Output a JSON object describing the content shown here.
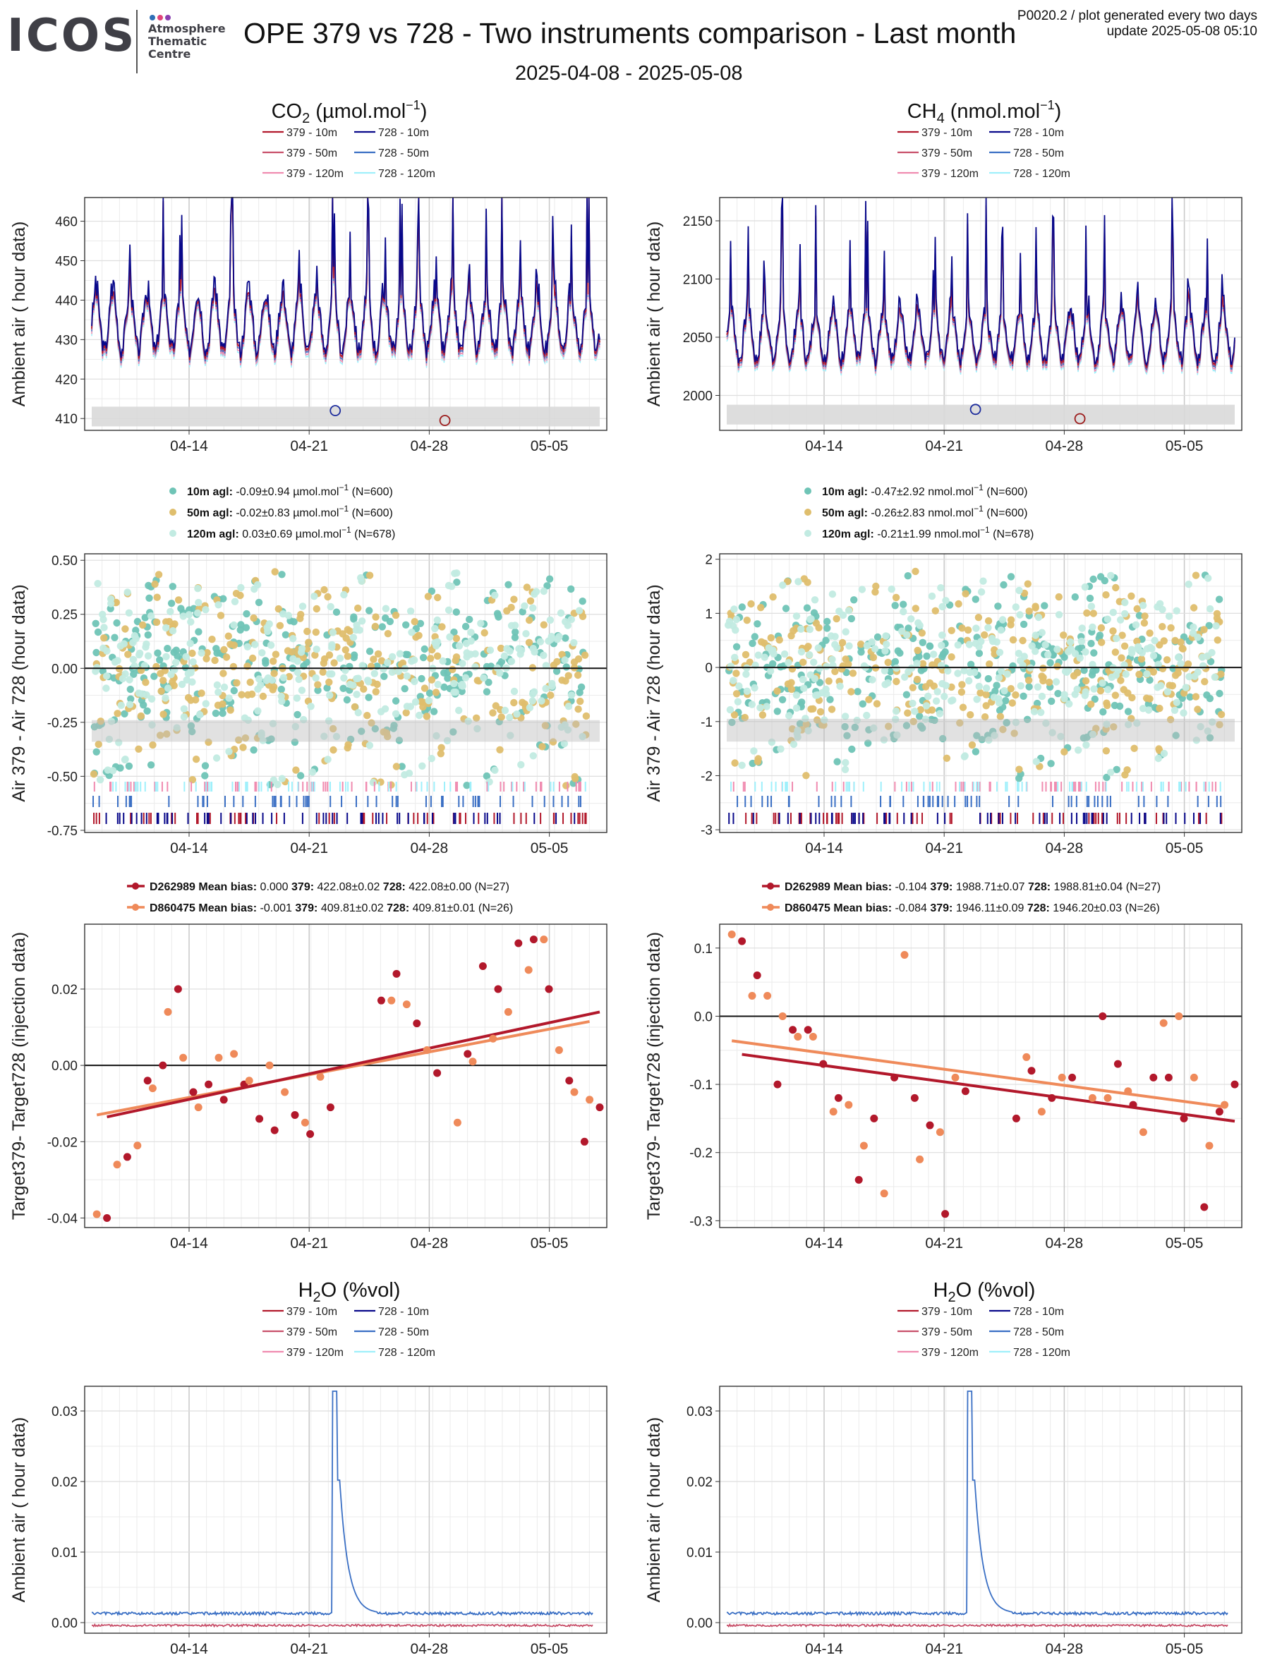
{
  "header": {
    "logo_text": "ICOS",
    "logo_sub": [
      "Atmosphere",
      "Thematic",
      "Centre"
    ],
    "logo_colors": [
      "#2f6fb6",
      "#e0457b",
      "#8a3fb0"
    ],
    "title": "OPE 379 vs 728 - Two instruments comparison - Last month",
    "date_range": "2025-04-08 - 2025-05-08",
    "plot_id": "P0020.2 / plot generated every two days",
    "update": "update  2025-05-08 05:10"
  },
  "legend_lines": {
    "items": [
      {
        "label": "379 - 10m",
        "color": "#b2182b"
      },
      {
        "label": "728 - 10m",
        "color": "#08088a"
      },
      {
        "label": "379 - 50m",
        "color": "#c8506a"
      },
      {
        "label": "728 - 50m",
        "color": "#3a6fc4"
      },
      {
        "label": "379 - 120m",
        "color": "#f08bb0"
      },
      {
        "label": "728 - 120m",
        "color": "#9ff0fb"
      }
    ]
  },
  "x_ticks": [
    "04-14",
    "04-21",
    "04-28",
    "05-05"
  ],
  "co2": {
    "title_main": "CO",
    "title_sub": "2",
    "title_unit": " (µmol.mol",
    "title_sup": "−1",
    "title_close": ")",
    "ambient": {
      "ylabel": "Ambient air ( hour data)",
      "yticks": [
        "410",
        "420",
        "430",
        "440",
        "450",
        "460"
      ],
      "ylim": [
        407,
        466
      ],
      "band": [
        408,
        413
      ],
      "circles": [
        {
          "x": 0.48,
          "y": 412,
          "color": "#1c2b9c"
        },
        {
          "x": 0.69,
          "y": 409.5,
          "color": "#9c1c1c"
        }
      ],
      "base": 432,
      "amp": 9,
      "spike": 28,
      "seed": 3
    },
    "diff_legend": [
      {
        "label": "10m agl:",
        "text": " -0.09±0.94 µmol.mol",
        "sup": "−1",
        "n": "(N=600)",
        "color": "#6fc4b6"
      },
      {
        "label": "50m agl:",
        "text": " -0.02±0.83 µmol.mol",
        "sup": "−1",
        "n": "(N=600)",
        "color": "#dfbe6d"
      },
      {
        "label": "120m agl:",
        "text": " 0.03±0.69 µmol.mol",
        "sup": "−1",
        "n": "(N=678)",
        "color": "#c2ebe2"
      }
    ],
    "diff": {
      "ylabel": "Air 379 - Air 728 (hour data)",
      "yticks": [
        "-0.75",
        "-0.50",
        "-0.25",
        "0.00",
        "0.25",
        "0.50"
      ],
      "ytick_vals": [
        -0.75,
        -0.5,
        -0.25,
        0,
        0.25,
        0.5
      ],
      "ylim": [
        -0.76,
        0.53
      ],
      "band": [
        -0.34,
        -0.24
      ],
      "spread": 0.5,
      "seed": 11
    },
    "target_legend": [
      {
        "tank": "D262989",
        "bias_label": "Mean bias:",
        "bias": " 0.000",
        "a_label": "379:",
        "a": " 422.08±0.02",
        "b_label": "728:",
        "b": " 422.08±0.00 (N=27)",
        "color": "#b2182b"
      },
      {
        "tank": "D860475",
        "bias_label": "Mean bias:",
        "bias": " -0.001",
        "a_label": "379:",
        "a": " 409.81±0.02",
        "b_label": "728:",
        "b": " 409.81±0.01 (N=26)",
        "color": "#ef8a5a"
      }
    ],
    "target": {
      "ylabel": "Target379- Target728 (injection data)",
      "yticks": [
        "-0.04",
        "-0.02",
        "0.00",
        "0.02"
      ],
      "ytick_vals": [
        -0.04,
        -0.02,
        0,
        0.02
      ],
      "ylim": [
        -0.0425,
        0.037
      ],
      "fit1": {
        "x": [
          0.03,
          1.0
        ],
        "y": [
          -0.0135,
          0.014
        ]
      },
      "fit2": {
        "x": [
          0.01,
          0.98
        ],
        "y": [
          -0.013,
          0.0115
        ]
      },
      "points": [
        [
          0.01,
          -0.039,
          2
        ],
        [
          0.03,
          -0.04,
          1
        ],
        [
          0.05,
          -0.026,
          2
        ],
        [
          0.07,
          -0.024,
          1
        ],
        [
          0.09,
          -0.021,
          2
        ],
        [
          0.11,
          -0.004,
          1
        ],
        [
          0.12,
          -0.006,
          2
        ],
        [
          0.14,
          0.0,
          1
        ],
        [
          0.15,
          0.014,
          2
        ],
        [
          0.17,
          0.02,
          1
        ],
        [
          0.18,
          0.002,
          2
        ],
        [
          0.2,
          -0.007,
          1
        ],
        [
          0.21,
          -0.011,
          2
        ],
        [
          0.23,
          -0.005,
          1
        ],
        [
          0.25,
          0.002,
          2
        ],
        [
          0.26,
          -0.009,
          1
        ],
        [
          0.28,
          0.003,
          2
        ],
        [
          0.3,
          -0.005,
          1
        ],
        [
          0.31,
          -0.004,
          2
        ],
        [
          0.33,
          -0.014,
          1
        ],
        [
          0.35,
          0.0,
          2
        ],
        [
          0.36,
          -0.017,
          1
        ],
        [
          0.38,
          -0.007,
          2
        ],
        [
          0.4,
          -0.013,
          1
        ],
        [
          0.42,
          -0.015,
          2
        ],
        [
          0.43,
          -0.018,
          1
        ],
        [
          0.45,
          -0.003,
          2
        ],
        [
          0.47,
          -0.011,
          1
        ],
        [
          0.57,
          0.017,
          1
        ],
        [
          0.59,
          0.017,
          2
        ],
        [
          0.6,
          0.024,
          1
        ],
        [
          0.62,
          0.016,
          2
        ],
        [
          0.64,
          0.011,
          1
        ],
        [
          0.66,
          0.004,
          2
        ],
        [
          0.68,
          -0.002,
          1
        ],
        [
          0.72,
          -0.015,
          2
        ],
        [
          0.74,
          0.003,
          1
        ],
        [
          0.75,
          0.001,
          2
        ],
        [
          0.77,
          0.026,
          1
        ],
        [
          0.79,
          0.007,
          2
        ],
        [
          0.8,
          0.02,
          1
        ],
        [
          0.82,
          0.014,
          2
        ],
        [
          0.84,
          0.032,
          1
        ],
        [
          0.86,
          0.025,
          2
        ],
        [
          0.87,
          0.033,
          1
        ],
        [
          0.89,
          0.033,
          2
        ],
        [
          0.9,
          0.02,
          1
        ],
        [
          0.92,
          0.004,
          2
        ],
        [
          0.94,
          -0.004,
          1
        ],
        [
          0.95,
          -0.007,
          2
        ],
        [
          0.97,
          -0.02,
          1
        ],
        [
          0.98,
          -0.009,
          2
        ],
        [
          1.0,
          -0.011,
          1
        ]
      ]
    }
  },
  "ch4": {
    "title_main": "CH",
    "title_sub": "4",
    "title_unit": " (nmol.mol",
    "title_sup": "−1",
    "title_close": ")",
    "ambient": {
      "ylabel": "Ambient air ( hour data)",
      "yticks": [
        "2000",
        "2050",
        "2100",
        "2150"
      ],
      "ylim": [
        1970,
        2170
      ],
      "band": [
        1975,
        1992
      ],
      "circles": [
        {
          "x": 0.49,
          "y": 1988,
          "color": "#1c2b9c"
        },
        {
          "x": 0.69,
          "y": 1980,
          "color": "#9c1c1c"
        }
      ],
      "base": 2045,
      "amp": 28,
      "spike": 95,
      "seed": 7
    },
    "diff_legend": [
      {
        "label": "10m agl:",
        "text": " -0.47±2.92 nmol.mol",
        "sup": "−1",
        "n": "(N=600)",
        "color": "#6fc4b6"
      },
      {
        "label": "50m agl:",
        "text": " -0.26±2.83 nmol.mol",
        "sup": "−1",
        "n": "(N=600)",
        "color": "#dfbe6d"
      },
      {
        "label": "120m agl:",
        "text": " -0.21±1.99 nmol.mol",
        "sup": "−1",
        "n": "(N=678)",
        "color": "#c2ebe2"
      }
    ],
    "diff": {
      "ylabel": "Air 379 - Air 728 (hour data)",
      "yticks": [
        "-3",
        "-2",
        "-1",
        "0",
        "1",
        "2"
      ],
      "ytick_vals": [
        -3,
        -2,
        -1,
        0,
        1,
        2
      ],
      "ylim": [
        -3.05,
        2.1
      ],
      "band": [
        -1.37,
        -0.95
      ],
      "spread": 1.9,
      "seed": 23
    },
    "target_legend": [
      {
        "tank": "D262989",
        "bias_label": "Mean bias:",
        "bias": " -0.104",
        "a_label": "379:",
        "a": " 1988.71±0.07",
        "b_label": "728:",
        "b": " 1988.81±0.04 (N=27)",
        "color": "#b2182b"
      },
      {
        "tank": "D860475",
        "bias_label": "Mean bias:",
        "bias": " -0.084",
        "a_label": "379:",
        "a": " 1946.11±0.09",
        "b_label": "728:",
        "b": " 1946.20±0.03 (N=26)",
        "color": "#ef8a5a"
      }
    ],
    "target": {
      "ylabel": "Target379- Target728 (injection data)",
      "yticks": [
        "-0.3",
        "-0.2",
        "-0.1",
        "0.0",
        "0.1"
      ],
      "ytick_vals": [
        -0.3,
        -0.2,
        -0.1,
        0,
        0.1
      ],
      "ylim": [
        -0.31,
        0.135
      ],
      "fit1": {
        "x": [
          0.03,
          1.0
        ],
        "y": [
          -0.056,
          -0.154
        ]
      },
      "fit2": {
        "x": [
          0.01,
          0.98
        ],
        "y": [
          -0.036,
          -0.133
        ]
      },
      "points": [
        [
          0.01,
          0.12,
          2
        ],
        [
          0.03,
          0.11,
          1
        ],
        [
          0.05,
          0.03,
          2
        ],
        [
          0.06,
          0.06,
          1
        ],
        [
          0.08,
          0.03,
          2
        ],
        [
          0.1,
          -0.1,
          1
        ],
        [
          0.11,
          0.0,
          2
        ],
        [
          0.13,
          -0.02,
          1
        ],
        [
          0.14,
          -0.03,
          2
        ],
        [
          0.16,
          -0.02,
          1
        ],
        [
          0.17,
          -0.03,
          2
        ],
        [
          0.19,
          -0.07,
          1
        ],
        [
          0.21,
          -0.14,
          2
        ],
        [
          0.22,
          -0.12,
          1
        ],
        [
          0.24,
          -0.13,
          2
        ],
        [
          0.26,
          -0.24,
          1
        ],
        [
          0.27,
          -0.19,
          2
        ],
        [
          0.29,
          -0.15,
          1
        ],
        [
          0.31,
          -0.26,
          2
        ],
        [
          0.33,
          -0.09,
          1
        ],
        [
          0.35,
          0.09,
          2
        ],
        [
          0.37,
          -0.12,
          1
        ],
        [
          0.38,
          -0.21,
          2
        ],
        [
          0.4,
          -0.16,
          1
        ],
        [
          0.42,
          -0.17,
          2
        ],
        [
          0.43,
          -0.29,
          1
        ],
        [
          0.45,
          -0.09,
          2
        ],
        [
          0.47,
          -0.11,
          1
        ],
        [
          0.57,
          -0.15,
          1
        ],
        [
          0.59,
          -0.06,
          2
        ],
        [
          0.6,
          -0.08,
          1
        ],
        [
          0.62,
          -0.14,
          2
        ],
        [
          0.64,
          -0.12,
          1
        ],
        [
          0.66,
          -0.09,
          2
        ],
        [
          0.68,
          -0.09,
          1
        ],
        [
          0.72,
          -0.12,
          2
        ],
        [
          0.74,
          0.0,
          1
        ],
        [
          0.75,
          -0.12,
          2
        ],
        [
          0.77,
          -0.07,
          1
        ],
        [
          0.79,
          -0.11,
          2
        ],
        [
          0.8,
          -0.13,
          1
        ],
        [
          0.82,
          -0.17,
          2
        ],
        [
          0.84,
          -0.09,
          1
        ],
        [
          0.86,
          -0.01,
          2
        ],
        [
          0.87,
          -0.09,
          1
        ],
        [
          0.89,
          0.0,
          2
        ],
        [
          0.9,
          -0.15,
          1
        ],
        [
          0.92,
          -0.09,
          2
        ],
        [
          0.94,
          -0.28,
          1
        ],
        [
          0.95,
          -0.19,
          2
        ],
        [
          0.97,
          -0.14,
          1
        ],
        [
          0.98,
          -0.13,
          2
        ],
        [
          1.0,
          -0.1,
          1
        ]
      ]
    }
  },
  "h2o": {
    "title_main": "H",
    "title_sub": "2",
    "title_rest": "O (%vol)",
    "ylabel": "Ambient air ( hour data)",
    "yticks": [
      "0.00",
      "0.01",
      "0.02",
      "0.03"
    ],
    "ytick_vals": [
      0,
      0.01,
      0.02,
      0.03
    ],
    "ylim": [
      -0.0015,
      0.0335
    ],
    "blue_level": 0.0013,
    "red_level": -0.0004,
    "spike_x": 0.48,
    "spike_peak": 0.0328,
    "spike_second": 0.0202
  },
  "chart_data": [
    {
      "type": "line",
      "title": "CO2 (µmol.mol−1)",
      "ylabel": "Ambient air ( hour data)",
      "x": [
        "04-14",
        "04-21",
        "04-28",
        "05-05"
      ],
      "ylim": [
        407,
        466
      ],
      "series": [
        {
          "name": "379 - 10m"
        },
        {
          "name": "728 - 10m"
        },
        {
          "name": "379 - 50m"
        },
        {
          "name": "728 - 50m"
        },
        {
          "name": "379 - 120m"
        },
        {
          "name": "728 - 120m"
        }
      ]
    },
    {
      "type": "line",
      "title": "CH4 (nmol.mol−1)",
      "ylabel": "Ambient air ( hour data)",
      "ylim": [
        1970,
        2170
      ]
    },
    {
      "type": "scatter",
      "ylabel": "Air 379 - Air 728 (hour data)",
      "ylim": [
        -0.76,
        0.53
      ],
      "series": [
        {
          "name": "10m agl",
          "mean": -0.09,
          "sd": 0.94,
          "n": 600
        },
        {
          "name": "50m agl",
          "mean": -0.02,
          "sd": 0.83,
          "n": 600
        },
        {
          "name": "120m agl",
          "mean": 0.03,
          "sd": 0.69,
          "n": 678
        }
      ]
    },
    {
      "type": "scatter",
      "ylabel": "Air 379 - Air 728 (hour data)",
      "ylim": [
        -3.05,
        2.1
      ],
      "series": [
        {
          "name": "10m agl",
          "mean": -0.47,
          "sd": 2.92,
          "n": 600
        },
        {
          "name": "50m agl",
          "mean": -0.26,
          "sd": 2.83,
          "n": 600
        },
        {
          "name": "120m agl",
          "mean": -0.21,
          "sd": 1.99,
          "n": 678
        }
      ]
    },
    {
      "type": "scatter",
      "ylabel": "Target379- Target728 (injection data)",
      "series": [
        {
          "name": "D262989",
          "mean_bias": 0.0,
          "n": 27
        },
        {
          "name": "D860475",
          "mean_bias": -0.001,
          "n": 26
        }
      ]
    },
    {
      "type": "scatter",
      "ylabel": "Target379- Target728 (injection data)",
      "series": [
        {
          "name": "D262989",
          "mean_bias": -0.104,
          "n": 27
        },
        {
          "name": "D860475",
          "mean_bias": -0.084,
          "n": 26
        }
      ]
    },
    {
      "type": "line",
      "title": "H2O (%vol)",
      "ylabel": "Ambient air ( hour data)",
      "ylim": [
        -0.0015,
        0.0335
      ],
      "peak": 0.0328
    }
  ]
}
